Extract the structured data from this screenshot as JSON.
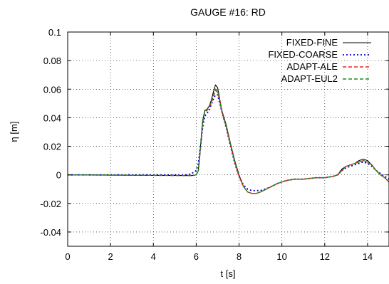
{
  "chart_data": {
    "type": "line",
    "title": "GAUGE #16: RD",
    "xlabel": "t [s]",
    "ylabel": "η [m]",
    "xlim": [
      0,
      15
    ],
    "ylim": [
      -0.05,
      0.1
    ],
    "xticks": [
      0,
      2,
      4,
      6,
      8,
      10,
      12,
      14
    ],
    "xtick_labels": [
      "0",
      "2",
      "4",
      "6",
      "8",
      "10",
      "12",
      "14"
    ],
    "yticks": [
      -0.04,
      -0.02,
      0,
      0.02,
      0.04,
      0.06,
      0.08,
      0.1
    ],
    "ytick_labels": [
      "-0.04",
      "-0.02",
      "0",
      "0.02",
      "0.04",
      "0.06",
      "0.08",
      "0.1"
    ],
    "grid": true,
    "legend_position": "top-right",
    "series": [
      {
        "name": "FIXED-FINE",
        "color": "#000000",
        "dash": "solid",
        "x": [
          0,
          5.8,
          6.0,
          6.1,
          6.2,
          6.3,
          6.4,
          6.5,
          6.6,
          6.7,
          6.8,
          6.9,
          7.0,
          7.1,
          7.2,
          7.4,
          7.6,
          7.8,
          8.0,
          8.2,
          8.4,
          8.6,
          8.8,
          9.0,
          9.4,
          9.8,
          10.2,
          10.6,
          11.0,
          11.6,
          12.0,
          12.4,
          12.6,
          12.8,
          13.0,
          13.2,
          13.4,
          13.6,
          13.8,
          14.0,
          14.2,
          14.4,
          14.6,
          14.8,
          15.0
        ],
        "y": [
          0,
          -0.0005,
          0.0,
          0.003,
          0.02,
          0.038,
          0.045,
          0.046,
          0.048,
          0.052,
          0.058,
          0.063,
          0.061,
          0.053,
          0.045,
          0.035,
          0.022,
          0.01,
          0.0,
          -0.008,
          -0.012,
          -0.013,
          -0.013,
          -0.012,
          -0.009,
          -0.006,
          -0.004,
          -0.003,
          -0.003,
          -0.002,
          -0.002,
          -0.001,
          0.0,
          0.004,
          0.006,
          0.007,
          0.008,
          0.01,
          0.011,
          0.01,
          0.007,
          0.003,
          0.0,
          -0.002,
          -0.005
        ]
      },
      {
        "name": "FIXED-COARSE",
        "color": "#0000cc",
        "dash": "dotted",
        "x": [
          0,
          5.6,
          5.8,
          6.0,
          6.1,
          6.2,
          6.3,
          6.4,
          6.5,
          6.6,
          6.7,
          6.8,
          6.9,
          7.0,
          7.1,
          7.2,
          7.4,
          7.6,
          7.8,
          8.0,
          8.2,
          8.4,
          8.6,
          8.8,
          9.0,
          9.4,
          9.8,
          10.2,
          10.6,
          11.0,
          11.6,
          12.0,
          12.4,
          12.6,
          12.8,
          13.0,
          13.2,
          13.4,
          13.6,
          13.8,
          14.0,
          14.2,
          14.4,
          14.6,
          14.8,
          15.0
        ],
        "y": [
          0,
          0.0,
          0.001,
          0.003,
          0.008,
          0.02,
          0.033,
          0.041,
          0.043,
          0.045,
          0.049,
          0.053,
          0.056,
          0.056,
          0.05,
          0.044,
          0.033,
          0.02,
          0.008,
          -0.001,
          -0.007,
          -0.01,
          -0.011,
          -0.011,
          -0.011,
          -0.009,
          -0.006,
          -0.004,
          -0.003,
          -0.003,
          -0.002,
          -0.002,
          -0.001,
          0.0,
          0.003,
          0.005,
          0.006,
          0.007,
          0.008,
          0.009,
          0.008,
          0.006,
          0.003,
          0.001,
          -0.001,
          -0.003
        ]
      },
      {
        "name": "ADAPT-ALE",
        "color": "#e8201c",
        "dash": "dashed",
        "x": [
          0,
          5.8,
          6.0,
          6.1,
          6.2,
          6.3,
          6.4,
          6.5,
          6.6,
          6.7,
          6.8,
          6.9,
          7.0,
          7.1,
          7.2,
          7.4,
          7.6,
          7.8,
          8.0,
          8.2,
          8.4,
          8.6,
          8.8,
          9.0,
          9.4,
          9.8,
          10.2,
          10.6,
          11.0,
          11.6,
          12.0,
          12.4,
          12.6,
          12.8,
          13.0,
          13.2,
          13.4,
          13.6,
          13.8,
          14.0,
          14.2,
          14.4,
          14.6,
          14.8,
          15.0
        ],
        "y": [
          0,
          -0.0005,
          0.0,
          0.003,
          0.018,
          0.036,
          0.044,
          0.045,
          0.047,
          0.05,
          0.055,
          0.059,
          0.058,
          0.052,
          0.044,
          0.034,
          0.021,
          0.009,
          -0.001,
          -0.008,
          -0.012,
          -0.013,
          -0.013,
          -0.012,
          -0.009,
          -0.006,
          -0.004,
          -0.003,
          -0.003,
          -0.002,
          -0.002,
          -0.001,
          0.0,
          0.003,
          0.006,
          0.007,
          0.008,
          0.009,
          0.01,
          0.009,
          0.007,
          0.003,
          0.0,
          -0.002,
          -0.005
        ]
      },
      {
        "name": "ADAPT-EUL2",
        "color": "#1b8a1b",
        "dash": "dashed",
        "x": [
          0,
          5.8,
          6.0,
          6.1,
          6.2,
          6.3,
          6.4,
          6.5,
          6.6,
          6.7,
          6.8,
          6.9,
          7.0,
          7.1,
          7.2,
          7.4,
          7.6,
          7.8,
          8.0,
          8.2,
          8.4,
          8.6,
          8.8,
          9.0,
          9.4,
          9.8,
          10.2,
          10.6,
          11.0,
          11.6,
          12.0,
          12.4,
          12.6,
          12.8,
          13.0,
          13.2,
          13.4,
          13.6,
          13.8,
          14.0,
          14.2,
          14.4,
          14.6,
          14.8,
          15.0
        ],
        "y": [
          0,
          -0.0005,
          0.0,
          0.003,
          0.019,
          0.037,
          0.044,
          0.046,
          0.048,
          0.051,
          0.056,
          0.06,
          0.059,
          0.052,
          0.044,
          0.034,
          0.021,
          0.009,
          -0.001,
          -0.008,
          -0.012,
          -0.013,
          -0.013,
          -0.012,
          -0.009,
          -0.006,
          -0.004,
          -0.003,
          -0.003,
          -0.002,
          -0.002,
          -0.001,
          0.0,
          0.003,
          0.006,
          0.007,
          0.008,
          0.009,
          0.01,
          0.009,
          0.007,
          0.003,
          0.0,
          -0.002,
          -0.005
        ]
      }
    ]
  }
}
